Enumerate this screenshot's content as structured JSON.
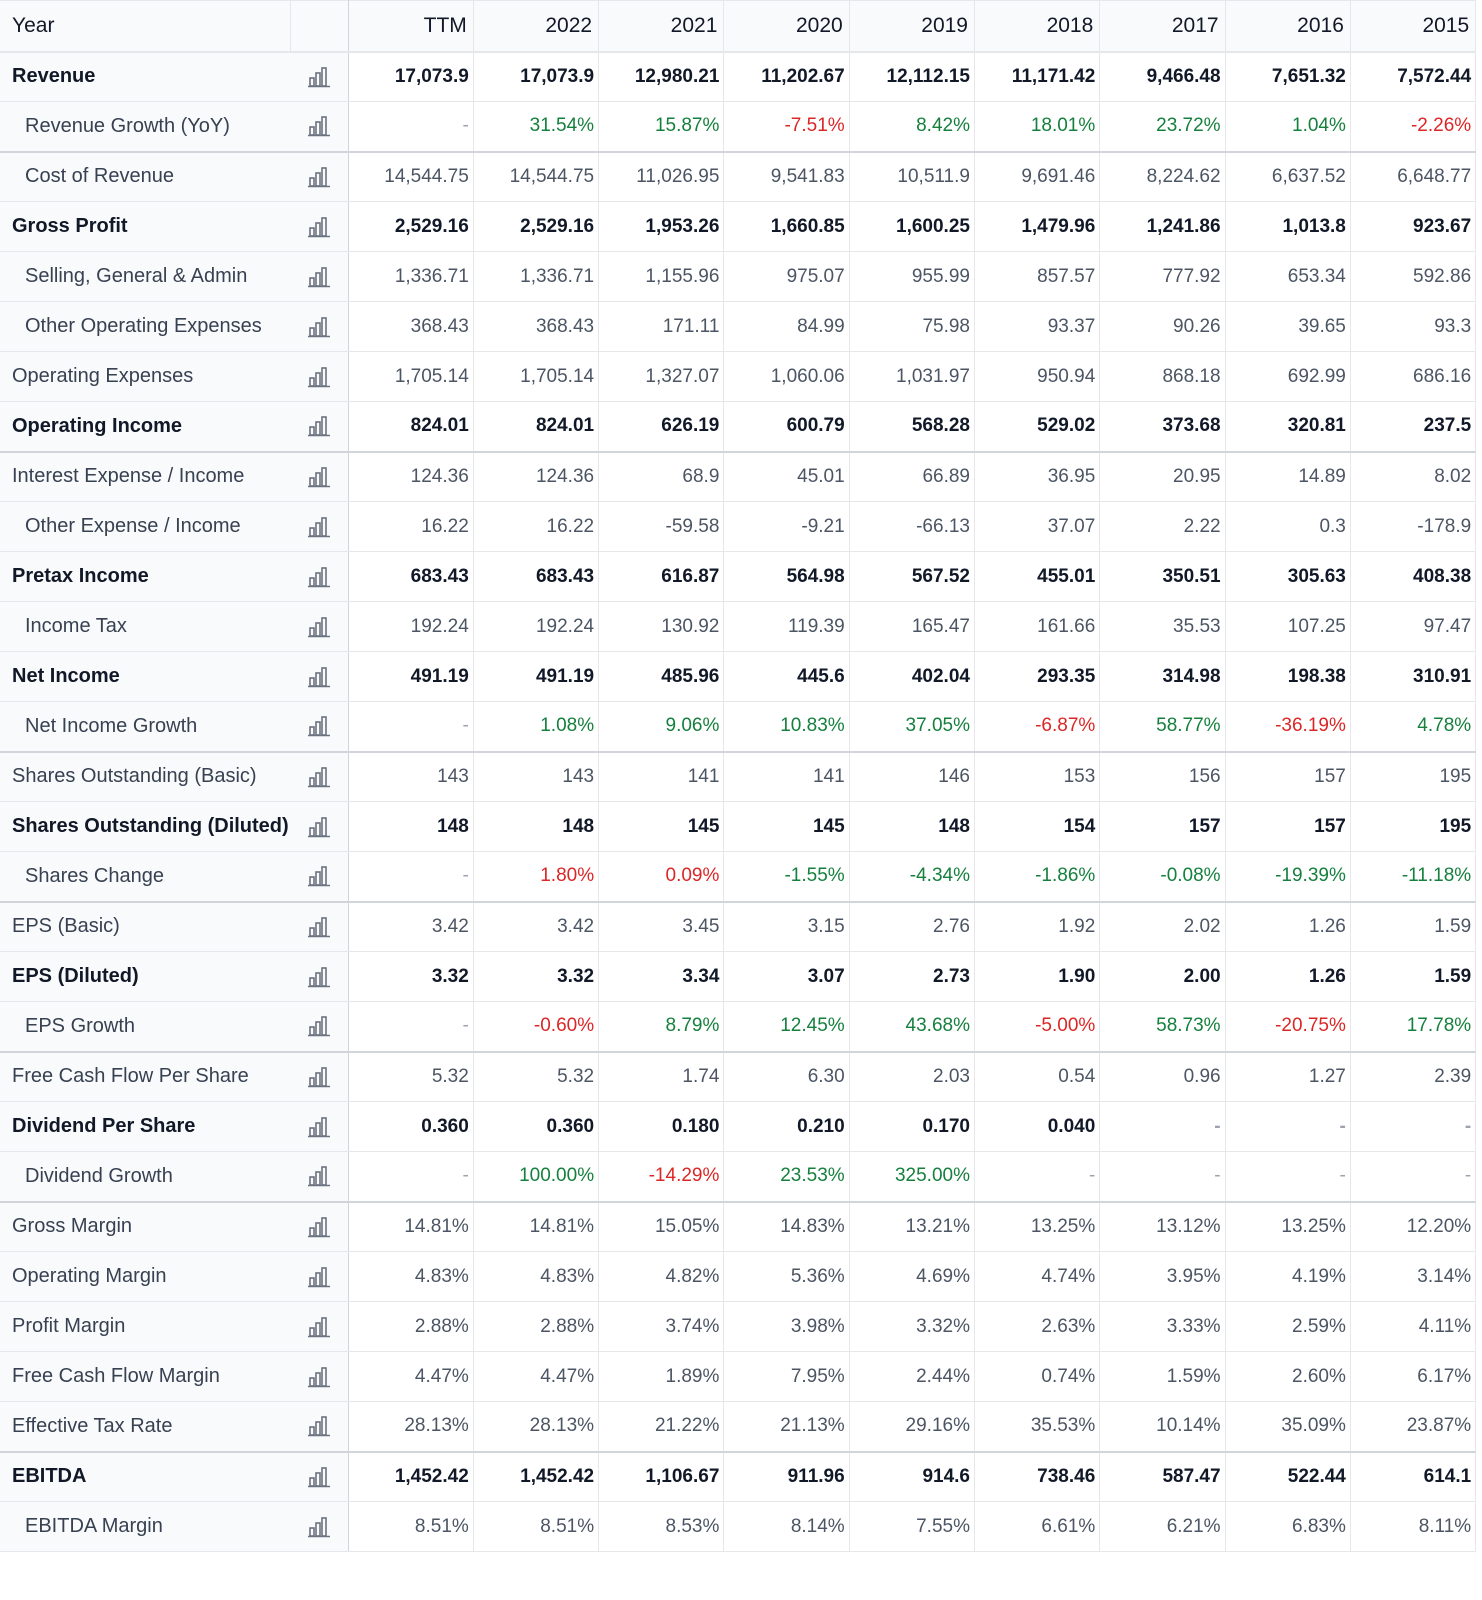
{
  "header": {
    "year_label": "Year",
    "columns": [
      "TTM",
      "2022",
      "2021",
      "2020",
      "2019",
      "2018",
      "2017",
      "2016",
      "2015"
    ]
  },
  "icons": {
    "row_chart": "bar-chart-icon"
  },
  "colors": {
    "positive": "#15803d",
    "negative": "#dc2626"
  },
  "rows": [
    {
      "label": "Revenue",
      "style": "bold",
      "values": [
        "17,073.9",
        "17,073.9",
        "12,980.21",
        "11,202.67",
        "12,112.15",
        "11,171.42",
        "9,466.48",
        "7,651.32",
        "7,572.44"
      ]
    },
    {
      "label": "Revenue Growth (YoY)",
      "style": "indent sep",
      "values": [
        "-",
        "31.54%",
        "15.87%",
        "-7.51%",
        "8.42%",
        "18.01%",
        "23.72%",
        "1.04%",
        "-2.26%"
      ],
      "tones": [
        "dash",
        "pos",
        "pos",
        "neg",
        "pos",
        "pos",
        "pos",
        "pos",
        "neg"
      ]
    },
    {
      "label": "Cost of Revenue",
      "style": "indent",
      "values": [
        "14,544.75",
        "14,544.75",
        "11,026.95",
        "9,541.83",
        "10,511.9",
        "9,691.46",
        "8,224.62",
        "6,637.52",
        "6,648.77"
      ]
    },
    {
      "label": "Gross Profit",
      "style": "bold",
      "values": [
        "2,529.16",
        "2,529.16",
        "1,953.26",
        "1,660.85",
        "1,600.25",
        "1,479.96",
        "1,241.86",
        "1,013.8",
        "923.67"
      ]
    },
    {
      "label": "Selling, General & Admin",
      "style": "indent",
      "values": [
        "1,336.71",
        "1,336.71",
        "1,155.96",
        "975.07",
        "955.99",
        "857.57",
        "777.92",
        "653.34",
        "592.86"
      ]
    },
    {
      "label": "Other Operating Expenses",
      "style": "indent",
      "values": [
        "368.43",
        "368.43",
        "171.11",
        "84.99",
        "75.98",
        "93.37",
        "90.26",
        "39.65",
        "93.3"
      ]
    },
    {
      "label": "Operating Expenses",
      "style": "",
      "values": [
        "1,705.14",
        "1,705.14",
        "1,327.07",
        "1,060.06",
        "1,031.97",
        "950.94",
        "868.18",
        "692.99",
        "686.16"
      ]
    },
    {
      "label": "Operating Income",
      "style": "bold sep",
      "values": [
        "824.01",
        "824.01",
        "626.19",
        "600.79",
        "568.28",
        "529.02",
        "373.68",
        "320.81",
        "237.5"
      ]
    },
    {
      "label": "Interest Expense / Income",
      "style": "",
      "values": [
        "124.36",
        "124.36",
        "68.9",
        "45.01",
        "66.89",
        "36.95",
        "20.95",
        "14.89",
        "8.02"
      ]
    },
    {
      "label": "Other Expense / Income",
      "style": "indent",
      "values": [
        "16.22",
        "16.22",
        "-59.58",
        "-9.21",
        "-66.13",
        "37.07",
        "2.22",
        "0.3",
        "-178.9"
      ]
    },
    {
      "label": "Pretax Income",
      "style": "bold",
      "values": [
        "683.43",
        "683.43",
        "616.87",
        "564.98",
        "567.52",
        "455.01",
        "350.51",
        "305.63",
        "408.38"
      ]
    },
    {
      "label": "Income Tax",
      "style": "indent",
      "values": [
        "192.24",
        "192.24",
        "130.92",
        "119.39",
        "165.47",
        "161.66",
        "35.53",
        "107.25",
        "97.47"
      ]
    },
    {
      "label": "Net Income",
      "style": "bold",
      "values": [
        "491.19",
        "491.19",
        "485.96",
        "445.6",
        "402.04",
        "293.35",
        "314.98",
        "198.38",
        "310.91"
      ]
    },
    {
      "label": "Net Income Growth",
      "style": "indent sep",
      "values": [
        "-",
        "1.08%",
        "9.06%",
        "10.83%",
        "37.05%",
        "-6.87%",
        "58.77%",
        "-36.19%",
        "4.78%"
      ],
      "tones": [
        "dash",
        "pos",
        "pos",
        "pos",
        "pos",
        "neg",
        "pos",
        "neg",
        "pos"
      ]
    },
    {
      "label": "Shares Outstanding (Basic)",
      "style": "",
      "values": [
        "143",
        "143",
        "141",
        "141",
        "146",
        "153",
        "156",
        "157",
        "195"
      ]
    },
    {
      "label": "Shares Outstanding (Diluted)",
      "style": "bold",
      "values": [
        "148",
        "148",
        "145",
        "145",
        "148",
        "154",
        "157",
        "157",
        "195"
      ]
    },
    {
      "label": "Shares Change",
      "style": "indent sep",
      "values": [
        "-",
        "1.80%",
        "0.09%",
        "-1.55%",
        "-4.34%",
        "-1.86%",
        "-0.08%",
        "-19.39%",
        "-11.18%"
      ],
      "tones": [
        "dash",
        "neg",
        "neg",
        "pos",
        "pos",
        "pos",
        "pos",
        "pos",
        "pos"
      ]
    },
    {
      "label": "EPS (Basic)",
      "style": "",
      "values": [
        "3.42",
        "3.42",
        "3.45",
        "3.15",
        "2.76",
        "1.92",
        "2.02",
        "1.26",
        "1.59"
      ]
    },
    {
      "label": "EPS (Diluted)",
      "style": "bold",
      "values": [
        "3.32",
        "3.32",
        "3.34",
        "3.07",
        "2.73",
        "1.90",
        "2.00",
        "1.26",
        "1.59"
      ]
    },
    {
      "label": "EPS Growth",
      "style": "indent sep",
      "values": [
        "-",
        "-0.60%",
        "8.79%",
        "12.45%",
        "43.68%",
        "-5.00%",
        "58.73%",
        "-20.75%",
        "17.78%"
      ],
      "tones": [
        "dash",
        "neg",
        "pos",
        "pos",
        "pos",
        "neg",
        "pos",
        "neg",
        "pos"
      ]
    },
    {
      "label": "Free Cash Flow Per Share",
      "style": "",
      "values": [
        "5.32",
        "5.32",
        "1.74",
        "6.30",
        "2.03",
        "0.54",
        "0.96",
        "1.27",
        "2.39"
      ]
    },
    {
      "label": "Dividend Per Share",
      "style": "bold",
      "values": [
        "0.360",
        "0.360",
        "0.180",
        "0.210",
        "0.170",
        "0.040",
        "-",
        "-",
        "-"
      ]
    },
    {
      "label": "Dividend Growth",
      "style": "indent sep",
      "values": [
        "-",
        "100.00%",
        "-14.29%",
        "23.53%",
        "325.00%",
        "-",
        "-",
        "-",
        "-"
      ],
      "tones": [
        "dash",
        "pos",
        "neg",
        "pos",
        "pos",
        "dash",
        "dash",
        "dash",
        "dash"
      ]
    },
    {
      "label": "Gross Margin",
      "style": "",
      "values": [
        "14.81%",
        "14.81%",
        "15.05%",
        "14.83%",
        "13.21%",
        "13.25%",
        "13.12%",
        "13.25%",
        "12.20%"
      ]
    },
    {
      "label": "Operating Margin",
      "style": "",
      "values": [
        "4.83%",
        "4.83%",
        "4.82%",
        "5.36%",
        "4.69%",
        "4.74%",
        "3.95%",
        "4.19%",
        "3.14%"
      ]
    },
    {
      "label": "Profit Margin",
      "style": "",
      "values": [
        "2.88%",
        "2.88%",
        "3.74%",
        "3.98%",
        "3.32%",
        "2.63%",
        "3.33%",
        "2.59%",
        "4.11%"
      ]
    },
    {
      "label": "Free Cash Flow Margin",
      "style": "",
      "values": [
        "4.47%",
        "4.47%",
        "1.89%",
        "7.95%",
        "2.44%",
        "0.74%",
        "1.59%",
        "2.60%",
        "6.17%"
      ]
    },
    {
      "label": "Effective Tax Rate",
      "style": "sep",
      "values": [
        "28.13%",
        "28.13%",
        "21.22%",
        "21.13%",
        "29.16%",
        "35.53%",
        "10.14%",
        "35.09%",
        "23.87%"
      ]
    },
    {
      "label": "EBITDA",
      "style": "bold",
      "values": [
        "1,452.42",
        "1,452.42",
        "1,106.67",
        "911.96",
        "914.6",
        "738.46",
        "587.47",
        "522.44",
        "614.1"
      ]
    },
    {
      "label": "EBITDA Margin",
      "style": "indent",
      "values": [
        "8.51%",
        "8.51%",
        "8.53%",
        "8.14%",
        "7.55%",
        "6.61%",
        "6.21%",
        "6.83%",
        "8.11%"
      ]
    }
  ]
}
